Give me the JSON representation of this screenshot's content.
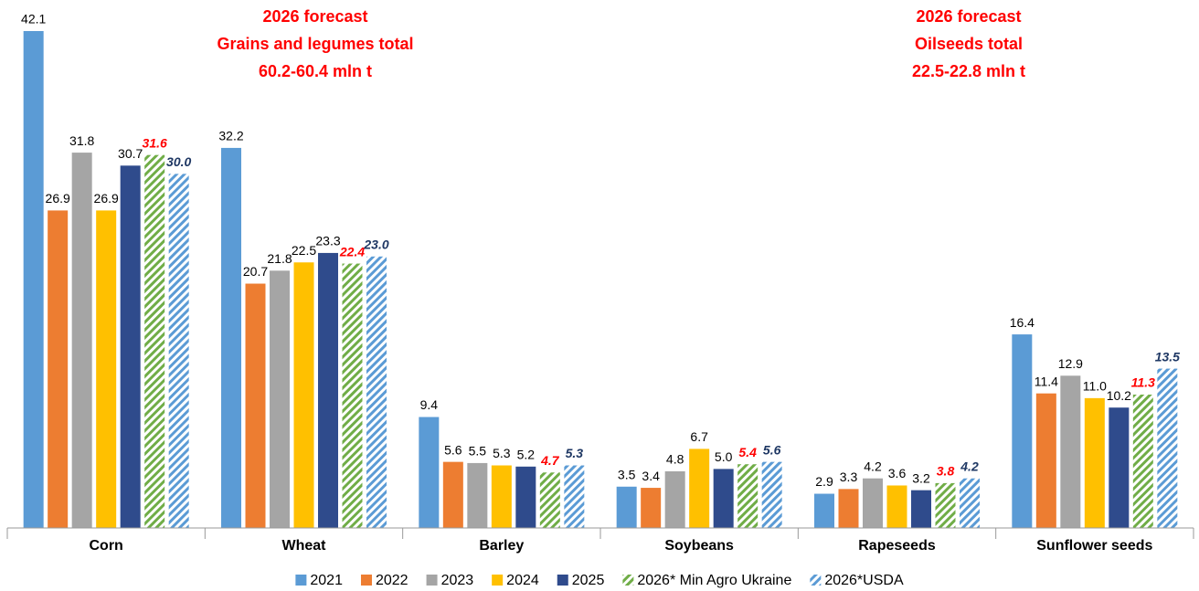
{
  "chart_data": {
    "type": "bar",
    "categories": [
      "Corn",
      "Wheat",
      "Barley",
      "Soybeans",
      "Rapeseeds",
      "Sunflower seeds"
    ],
    "ylim": [
      0,
      42.1
    ],
    "annotations": [
      {
        "lines": [
          "2026 forecast",
          "Grains and legumes total",
          "60.2-60.4 mln t"
        ],
        "color": "#ff0000"
      },
      {
        "lines": [
          "2026 forecast",
          "Oilseeds total",
          "22.5-22.8 mln t"
        ],
        "color": "#ff0000"
      }
    ],
    "legend": "bottom",
    "series": [
      {
        "name": "2021",
        "color": "#5b9bd5",
        "hatch": false,
        "label_color": "#000000",
        "values": [
          42.1,
          32.2,
          9.4,
          3.5,
          2.9,
          16.4
        ],
        "value_labels": [
          "42.1",
          "32.2",
          "9.4",
          "3.5",
          "2.9",
          "16.4"
        ]
      },
      {
        "name": "2022",
        "color": "#ed7d31",
        "hatch": false,
        "label_color": "#000000",
        "values": [
          26.9,
          20.7,
          5.6,
          3.4,
          3.3,
          11.4
        ],
        "value_labels": [
          "26.9",
          "20.7",
          "5.6",
          "3.4",
          "3.3",
          "11.4"
        ]
      },
      {
        "name": "2023",
        "color": "#a5a5a5",
        "hatch": false,
        "label_color": "#000000",
        "values": [
          31.8,
          21.8,
          5.5,
          4.8,
          4.2,
          12.9
        ],
        "value_labels": [
          "31.8",
          "21.8",
          "5.5",
          "4.8",
          "4.2",
          "12.9"
        ]
      },
      {
        "name": "2024",
        "color": "#ffc000",
        "hatch": false,
        "label_color": "#000000",
        "values": [
          26.9,
          22.5,
          5.3,
          6.7,
          3.6,
          11.0
        ],
        "value_labels": [
          "26.9",
          "22.5",
          "5.3",
          "6.7",
          "3.6",
          "11.0"
        ]
      },
      {
        "name": "2025",
        "color": "#2f4b8c",
        "hatch": false,
        "label_color": "#000000",
        "values": [
          30.7,
          23.3,
          5.2,
          5.0,
          3.2,
          10.2
        ],
        "value_labels": [
          "30.7",
          "23.3",
          "5.2",
          "5.0",
          "3.2",
          "10.2"
        ]
      },
      {
        "name": "2026* Min Agro Ukraine",
        "color": "#70ad47",
        "hatch": true,
        "label_color": "#ff0000",
        "values": [
          31.6,
          22.4,
          4.7,
          5.4,
          3.8,
          11.3
        ],
        "value_labels": [
          "31.6",
          "22.4",
          "4.7",
          "5.4",
          "3.8",
          "11.3"
        ]
      },
      {
        "name": "2026*USDA",
        "color": "#5b9bd5",
        "hatch": true,
        "label_color": "#1f3864",
        "values": [
          30.0,
          23.0,
          5.3,
          5.6,
          4.2,
          13.5
        ],
        "value_labels": [
          "30.0",
          "23.0",
          "5.3",
          "5.6",
          "4.2",
          "13.5"
        ]
      }
    ]
  }
}
